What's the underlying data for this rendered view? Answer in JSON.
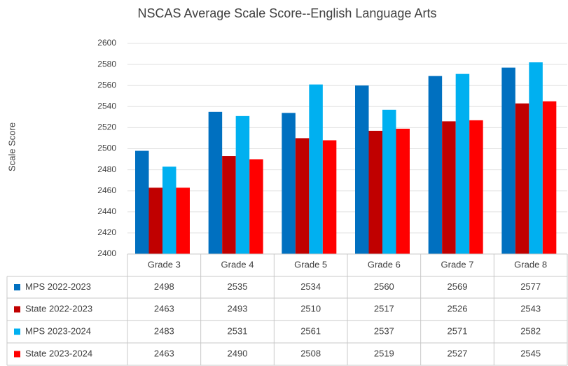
{
  "chart_data": {
    "type": "bar",
    "title": "NSCAS Average Scale Score--English Language Arts",
    "y_label": "Scale Score",
    "categories": [
      "Grade 3",
      "Grade 4",
      "Grade 5",
      "Grade 6",
      "Grade 7",
      "Grade 8"
    ],
    "series": [
      {
        "name": "MPS 2022-2023",
        "color": "#0070c0",
        "values": [
          2498,
          2535,
          2534,
          2560,
          2569,
          2577
        ]
      },
      {
        "name": "State 2022-2023",
        "color": "#c00000",
        "values": [
          2463,
          2493,
          2510,
          2517,
          2526,
          2543
        ]
      },
      {
        "name": "MPS 2023-2024",
        "color": "#00b0f0",
        "values": [
          2483,
          2531,
          2561,
          2537,
          2571,
          2582
        ]
      },
      {
        "name": "State 2023-2024",
        "color": "#ff0000",
        "values": [
          2463,
          2490,
          2508,
          2519,
          2527,
          2545
        ]
      }
    ],
    "ylim": [
      2400,
      2600
    ],
    "yticks": [
      2400,
      2420,
      2440,
      2460,
      2480,
      2500,
      2520,
      2540,
      2560,
      2580,
      2600
    ],
    "grid": true,
    "data_table": true
  }
}
